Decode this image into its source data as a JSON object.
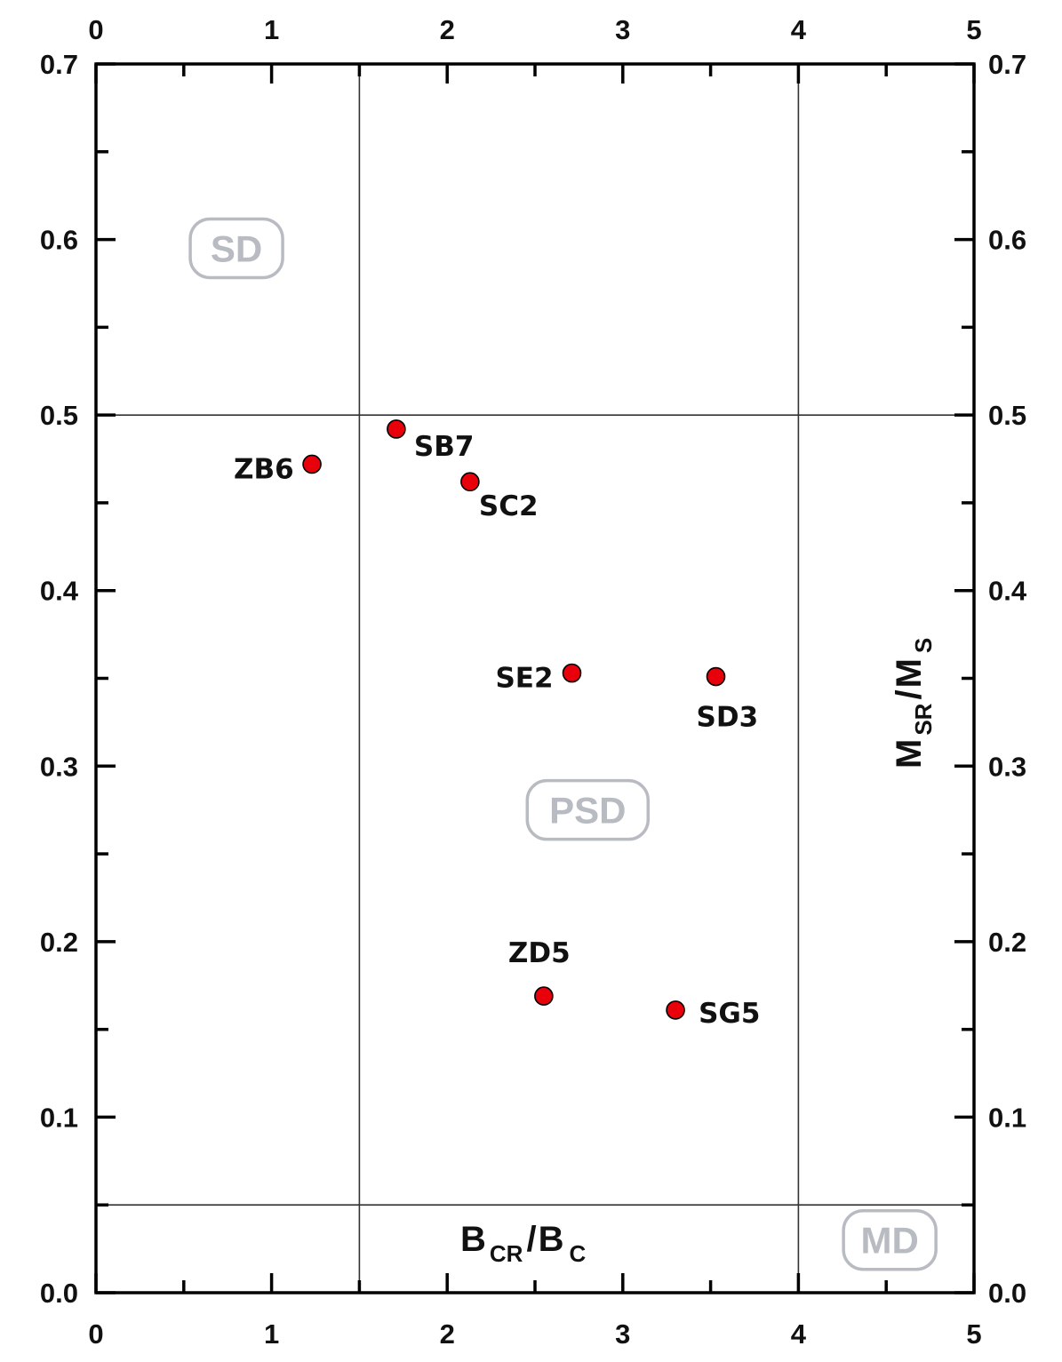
{
  "chart_data": {
    "type": "scatter",
    "xlim": [
      0,
      5
    ],
    "ylim": [
      0,
      0.7
    ],
    "x_ticks": [
      "0",
      "1",
      "2",
      "3",
      "4",
      "5"
    ],
    "y_ticks": [
      "0.0",
      "0.1",
      "0.2",
      "0.3",
      "0.4",
      "0.5",
      "0.6",
      "0.7"
    ],
    "xlabel": {
      "main1": "B",
      "sub1": "CR",
      "slash": "/",
      "main2": "B",
      "sub2": "C"
    },
    "ylabel": {
      "main1": "M",
      "sub1": "SR",
      "slash": "/",
      "main2": "M",
      "sub2": "S"
    },
    "reference_lines": {
      "x": [
        1.5,
        4
      ],
      "y": [
        0.05,
        0.5
      ]
    },
    "regions": [
      {
        "label": "SD",
        "x": 0.8,
        "y": 0.595
      },
      {
        "label": "PSD",
        "x": 2.8,
        "y": 0.275
      },
      {
        "label": "MD",
        "x": 4.52,
        "y": 0.03
      }
    ],
    "points": [
      {
        "label": "ZB6",
        "x": 1.23,
        "y": 0.472
      },
      {
        "label": "SB7",
        "x": 1.71,
        "y": 0.492
      },
      {
        "label": "SC2",
        "x": 2.13,
        "y": 0.462
      },
      {
        "label": "SE2",
        "x": 2.71,
        "y": 0.353
      },
      {
        "label": "SD3",
        "x": 3.53,
        "y": 0.351
      },
      {
        "label": "ZD5",
        "x": 2.55,
        "y": 0.169
      },
      {
        "label": "SG5",
        "x": 3.3,
        "y": 0.161
      }
    ],
    "marker_color": "#e8000b",
    "grid": false
  }
}
